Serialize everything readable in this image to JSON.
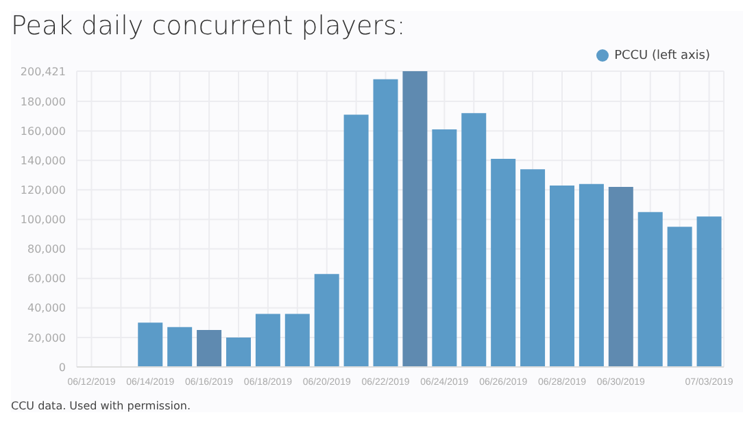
{
  "chart_data": {
    "type": "bar",
    "title": "Peak daily concurrent players:",
    "categories": [
      "06/12/2019",
      null,
      "06/14/2019",
      null,
      "06/16/2019",
      null,
      "06/18/2019",
      null,
      "06/20/2019",
      null,
      "06/22/2019",
      null,
      "06/24/2019",
      null,
      "06/26/2019",
      null,
      "06/28/2019",
      null,
      "06/30/2019",
      null,
      null,
      "07/03/2019"
    ],
    "series": [
      {
        "name": "PCCU (left axis)",
        "color": "#5b9bc8",
        "values": [
          null,
          null,
          30000,
          27000,
          25000,
          20000,
          36000,
          36000,
          63000,
          171000,
          195000,
          200421,
          161000,
          172000,
          141000,
          134000,
          123000,
          124000,
          122000,
          105000,
          95000,
          102000
        ],
        "colors": [
          "#5b9bc8",
          "#5b9bc8",
          "#5b9bc8",
          "#5b9bc8",
          "#5f8ab0",
          "#5b9bc8",
          "#5b9bc8",
          "#5b9bc8",
          "#5b9bc8",
          "#5b9bc8",
          "#5b9bc8",
          "#5f8ab0",
          "#5b9bc8",
          "#5b9bc8",
          "#5b9bc8",
          "#5b9bc8",
          "#5b9bc8",
          "#5b9bc8",
          "#5f8ab0",
          "#5b9bc8",
          "#5b9bc8",
          "#5b9bc8"
        ]
      }
    ],
    "ylim": [
      0,
      200421
    ],
    "yticks": [
      {
        "value": 0,
        "label": "0"
      },
      {
        "value": 20000,
        "label": "20,000"
      },
      {
        "value": 40000,
        "label": "40,000"
      },
      {
        "value": 60000,
        "label": "60,000"
      },
      {
        "value": 80000,
        "label": "80,000"
      },
      {
        "value": 100000,
        "label": "100,000"
      },
      {
        "value": 120000,
        "label": "120,000"
      },
      {
        "value": 140000,
        "label": "140,000"
      },
      {
        "value": 160000,
        "label": "160,000"
      },
      {
        "value": 180000,
        "label": "180,000"
      },
      {
        "value": 200421,
        "label": "200,421"
      }
    ],
    "grid": true,
    "legend": "top right",
    "annotations": [
      "CCU data. Used with permission."
    ]
  }
}
